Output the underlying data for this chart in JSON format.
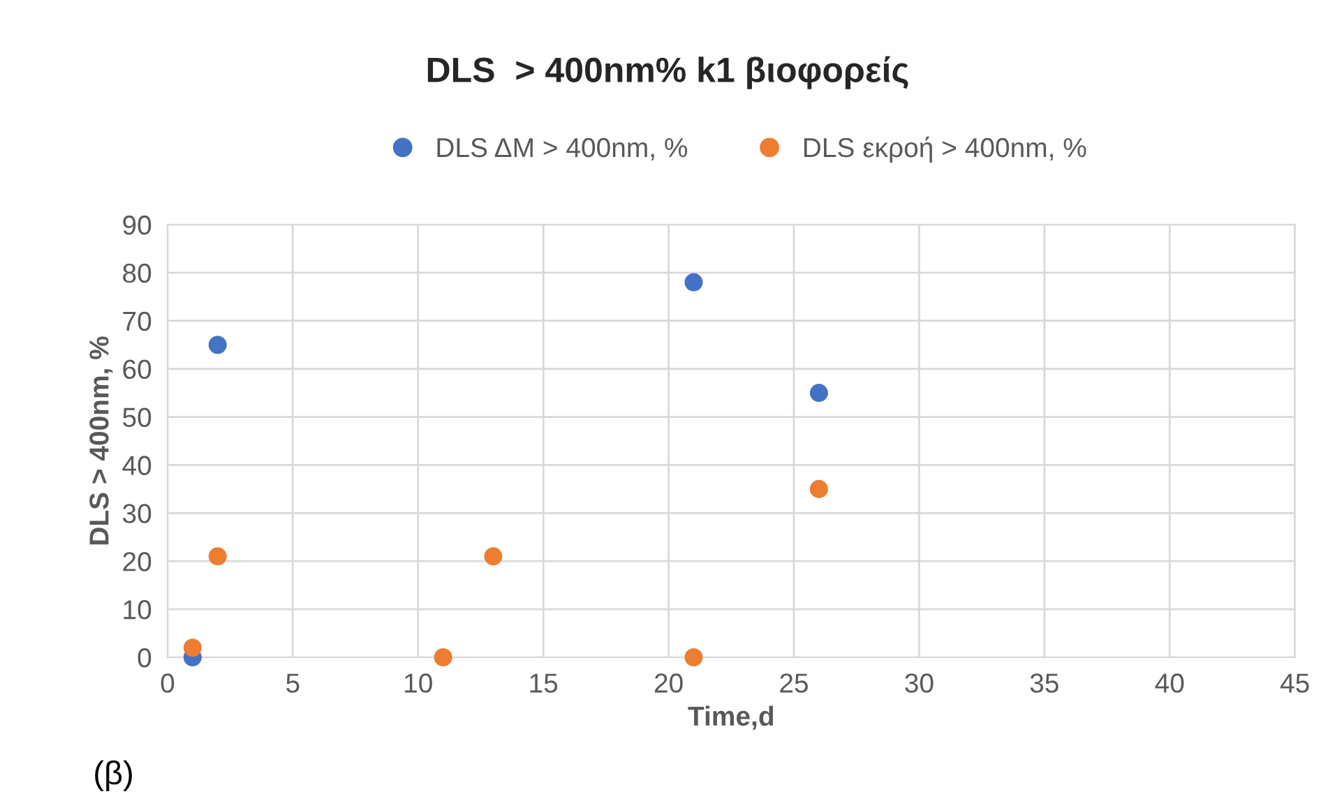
{
  "chart_data": {
    "type": "scatter",
    "title": "DLS  > 400nm% k1 βιοφορείς",
    "xlabel": "Time,d",
    "ylabel": "DLS > 400nm, %",
    "series": [
      {
        "name": "DLS ΔΜ > 400nm, %",
        "color": "#4472c4",
        "x": [
          1,
          2,
          21,
          26
        ],
        "values": [
          0,
          65,
          78,
          55
        ]
      },
      {
        "name": "DLS εκροή > 400nm, %",
        "color": "#ed7d31",
        "x": [
          1,
          2,
          11,
          13,
          21,
          26
        ],
        "values": [
          2,
          21,
          0,
          21,
          0,
          35
        ]
      }
    ],
    "xlim": [
      0,
      45
    ],
    "xticks": [
      0,
      5,
      10,
      15,
      20,
      25,
      30,
      35,
      40,
      45
    ],
    "ylim": [
      0,
      90
    ],
    "yticks": [
      0,
      10,
      20,
      30,
      40,
      50,
      60,
      70,
      80,
      90
    ],
    "grid": true,
    "legend": "top",
    "marker": "circle",
    "annotations": [
      "(β)"
    ]
  }
}
